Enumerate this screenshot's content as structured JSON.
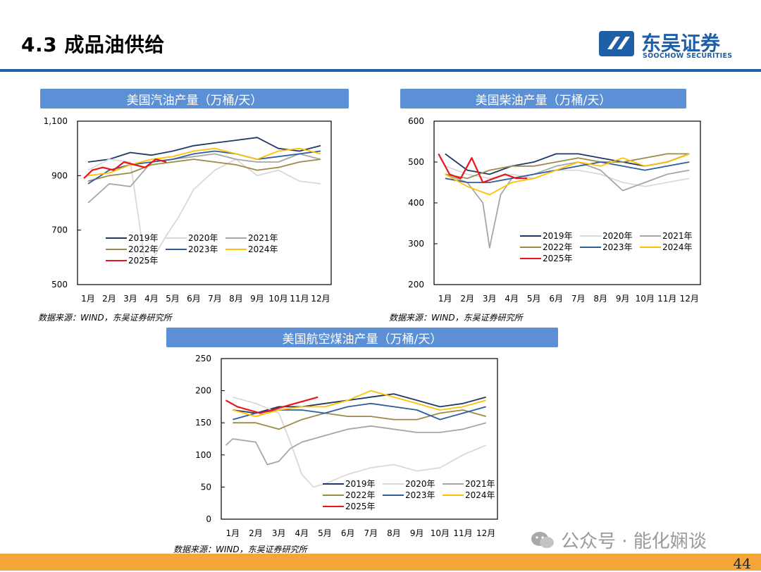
{
  "header": {
    "title": "4.3 成品油供给"
  },
  "logo": {
    "name": "东吴证券",
    "en": "SOOCHOW SECURITIES"
  },
  "footer": {
    "page": "44",
    "watermark": "公众号 · 能化娴谈"
  },
  "charts": {
    "gasoline": {
      "title": "美国汽油产量（万桶/天）",
      "source": "数据来源：WIND，东吴证券研究所"
    },
    "diesel": {
      "title": "美国柴油产量（万桶/天）",
      "source": "数据来源：WIND，东吴证券研究所"
    },
    "jet": {
      "title": "美国航空煤油产量（万桶/天）",
      "source": "数据来源：WIND，东吴证券研究所"
    }
  },
  "chart_data": [
    {
      "id": "gasoline",
      "type": "line",
      "title": "美国汽油产量（万桶/天）",
      "x_ticks": [
        "1月",
        "2月",
        "3月",
        "4月",
        "5月",
        "6月",
        "7月",
        "8月",
        "9月",
        "10月",
        "11月",
        "12月"
      ],
      "y_ticks": [
        "500",
        "700",
        "900",
        "1,100"
      ],
      "ylim": [
        500,
        1100
      ],
      "x_unit": "month",
      "legend_position": "bottom",
      "series": [
        {
          "name": "2019年",
          "color": "#1f3864",
          "x": [
            0.5,
            1.5,
            2.5,
            3.5,
            4.5,
            5.5,
            6.5,
            7.5,
            8.5,
            9.5,
            10.5,
            11.5
          ],
          "y": [
            950,
            960,
            985,
            975,
            990,
            1010,
            1020,
            1030,
            1040,
            1000,
            990,
            1010
          ]
        },
        {
          "name": "2020年",
          "color": "#d9d9d9",
          "x": [
            0.5,
            1.5,
            2.5,
            3.2,
            3.6,
            4.2,
            4.8,
            5.5,
            6.5,
            7.5,
            8.5,
            9.5,
            10.5,
            11.5
          ],
          "y": [
            920,
            960,
            950,
            580,
            600,
            680,
            750,
            850,
            920,
            960,
            900,
            920,
            880,
            870
          ]
        },
        {
          "name": "2021年",
          "color": "#a6a6a6",
          "x": [
            0.5,
            1.5,
            2.5,
            3.5,
            4.5,
            5.5,
            6.5,
            7.5,
            8.5,
            9.5,
            10.5,
            11.5
          ],
          "y": [
            800,
            870,
            860,
            950,
            960,
            970,
            980,
            960,
            950,
            950,
            980,
            960
          ]
        },
        {
          "name": "2022年",
          "color": "#9c8a4a",
          "x": [
            0.5,
            1.5,
            2.5,
            3.5,
            4.5,
            5.5,
            6.5,
            7.5,
            8.5,
            9.5,
            10.5,
            11.5
          ],
          "y": [
            880,
            900,
            910,
            940,
            950,
            960,
            950,
            940,
            920,
            930,
            950,
            960
          ]
        },
        {
          "name": "2023年",
          "color": "#2e5c9e",
          "x": [
            0.5,
            1.5,
            2.5,
            3.5,
            4.5,
            5.5,
            6.5,
            7.5,
            8.5,
            9.5,
            10.5,
            11.5
          ],
          "y": [
            870,
            920,
            940,
            950,
            960,
            980,
            990,
            980,
            960,
            970,
            980,
            990
          ]
        },
        {
          "name": "2024年",
          "color": "#ffc000",
          "x": [
            0.5,
            1.5,
            2.5,
            3.5,
            4.5,
            5.5,
            6.5,
            7.5,
            8.5,
            9.5,
            10.5,
            11.5
          ],
          "y": [
            900,
            910,
            940,
            960,
            970,
            990,
            1000,
            980,
            960,
            990,
            1000,
            980
          ]
        },
        {
          "name": "2025年",
          "color": "#e8151b",
          "x": [
            0.3,
            0.7,
            1.2,
            1.7,
            2.2,
            2.7,
            3.2,
            3.7,
            4.2
          ],
          "y": [
            890,
            920,
            930,
            920,
            950,
            940,
            930,
            960,
            950
          ]
        }
      ]
    },
    {
      "id": "diesel",
      "type": "line",
      "title": "美国柴油产量（万桶/天）",
      "x_ticks": [
        "1月",
        "2月",
        "3月",
        "4月",
        "5月",
        "6月",
        "7月",
        "8月",
        "9月",
        "10月",
        "11月",
        "12月"
      ],
      "y_ticks": [
        "200",
        "300",
        "400",
        "500",
        "600"
      ],
      "ylim": [
        200,
        600
      ],
      "x_unit": "month",
      "legend_position": "bottom",
      "series": [
        {
          "name": "2019年",
          "color": "#1f3864",
          "x": [
            0.5,
            1.5,
            2.5,
            3.5,
            4.5,
            5.5,
            6.5,
            7.5,
            8.5,
            9.5,
            10.5,
            11.5
          ],
          "y": [
            520,
            480,
            470,
            490,
            500,
            520,
            520,
            510,
            500,
            490,
            500,
            520
          ]
        },
        {
          "name": "2020年",
          "color": "#d9d9d9",
          "x": [
            0.5,
            1.5,
            2.5,
            3.5,
            4.5,
            5.5,
            6.5,
            7.5,
            8.5,
            9.5,
            10.5,
            11.5
          ],
          "y": [
            490,
            470,
            460,
            470,
            460,
            480,
            480,
            470,
            450,
            440,
            450,
            460
          ]
        },
        {
          "name": "2021年",
          "color": "#a6a6a6",
          "x": [
            0.5,
            1.5,
            2.2,
            2.5,
            3.0,
            3.5,
            4.5,
            5.5,
            6.5,
            7.5,
            8.5,
            9.5,
            10.5,
            11.5
          ],
          "y": [
            470,
            450,
            400,
            290,
            420,
            460,
            470,
            490,
            500,
            480,
            430,
            450,
            470,
            480
          ]
        },
        {
          "name": "2022年",
          "color": "#9c8a4a",
          "x": [
            0.5,
            1.5,
            2.5,
            3.5,
            4.5,
            5.5,
            6.5,
            7.5,
            8.5,
            9.5,
            10.5,
            11.5
          ],
          "y": [
            470,
            460,
            480,
            490,
            490,
            500,
            510,
            500,
            500,
            510,
            520,
            520
          ]
        },
        {
          "name": "2023年",
          "color": "#2e5c9e",
          "x": [
            0.5,
            1.5,
            2.5,
            3.5,
            4.5,
            5.5,
            6.5,
            7.5,
            8.5,
            9.5,
            10.5,
            11.5
          ],
          "y": [
            460,
            450,
            450,
            460,
            470,
            480,
            490,
            500,
            490,
            480,
            490,
            500
          ]
        },
        {
          "name": "2024年",
          "color": "#ffc000",
          "x": [
            0.5,
            1.5,
            2.5,
            3.5,
            4.5,
            5.5,
            6.5,
            7.5,
            8.5,
            9.5,
            10.5,
            11.5
          ],
          "y": [
            470,
            440,
            420,
            450,
            460,
            480,
            500,
            490,
            510,
            490,
            500,
            520
          ]
        },
        {
          "name": "2025年",
          "color": "#e8151b",
          "x": [
            0.2,
            0.7,
            1.2,
            1.7,
            2.2,
            2.7,
            3.2,
            3.7,
            4.2
          ],
          "y": [
            520,
            470,
            460,
            510,
            450,
            460,
            470,
            460,
            460
          ]
        }
      ]
    },
    {
      "id": "jet",
      "type": "line",
      "title": "美国航空煤油产量（万桶/天）",
      "x_ticks": [
        "1月",
        "2月",
        "3月",
        "4月",
        "5月",
        "6月",
        "7月",
        "8月",
        "9月",
        "10月",
        "11月",
        "12月"
      ],
      "y_ticks": [
        "0",
        "50",
        "100",
        "150",
        "200",
        "250"
      ],
      "ylim": [
        0,
        250
      ],
      "x_unit": "month",
      "legend_position": "bottom",
      "series": [
        {
          "name": "2019年",
          "color": "#1f3864",
          "x": [
            0.5,
            1.5,
            2.5,
            3.5,
            4.5,
            5.5,
            6.5,
            7.5,
            8.5,
            9.5,
            10.5,
            11.5
          ],
          "y": [
            170,
            165,
            175,
            175,
            180,
            185,
            190,
            195,
            185,
            175,
            180,
            190
          ]
        },
        {
          "name": "2020年",
          "color": "#d9d9d9",
          "x": [
            0.5,
            1.5,
            2.5,
            3.0,
            3.5,
            4.0,
            4.5,
            5.5,
            6.5,
            7.5,
            8.5,
            9.5,
            10.5,
            11.5
          ],
          "y": [
            190,
            180,
            165,
            120,
            70,
            50,
            55,
            70,
            80,
            85,
            75,
            80,
            100,
            115
          ]
        },
        {
          "name": "2021年",
          "color": "#a6a6a6",
          "x": [
            0.2,
            0.5,
            1.5,
            2.0,
            2.5,
            3.0,
            3.5,
            4.5,
            5.5,
            6.5,
            7.5,
            8.5,
            9.5,
            10.5,
            11.5
          ],
          "y": [
            115,
            125,
            120,
            85,
            90,
            110,
            120,
            130,
            140,
            145,
            140,
            135,
            135,
            140,
            150
          ]
        },
        {
          "name": "2022年",
          "color": "#9c8a4a",
          "x": [
            0.5,
            1.5,
            2.5,
            3.5,
            4.5,
            5.5,
            6.5,
            7.5,
            8.5,
            9.5,
            10.5,
            11.5
          ],
          "y": [
            150,
            150,
            140,
            155,
            165,
            160,
            160,
            155,
            155,
            165,
            170,
            160
          ]
        },
        {
          "name": "2023年",
          "color": "#2e5c9e",
          "x": [
            0.5,
            1.5,
            2.5,
            3.5,
            4.5,
            5.5,
            6.5,
            7.5,
            8.5,
            9.5,
            10.5,
            11.5
          ],
          "y": [
            155,
            165,
            170,
            170,
            165,
            175,
            180,
            175,
            170,
            155,
            165,
            175
          ]
        },
        {
          "name": "2024年",
          "color": "#ffc000",
          "x": [
            0.5,
            1.5,
            2.5,
            3.5,
            4.5,
            5.5,
            6.5,
            7.5,
            8.5,
            9.5,
            10.5,
            11.5
          ],
          "y": [
            170,
            160,
            170,
            175,
            175,
            185,
            200,
            190,
            180,
            170,
            175,
            185
          ]
        },
        {
          "name": "2025年",
          "color": "#e8151b",
          "x": [
            0.2,
            0.7,
            1.2,
            1.7,
            2.2,
            2.7,
            3.2,
            3.7,
            4.2
          ],
          "y": [
            185,
            175,
            170,
            165,
            170,
            175,
            180,
            185,
            190
          ]
        }
      ]
    }
  ]
}
